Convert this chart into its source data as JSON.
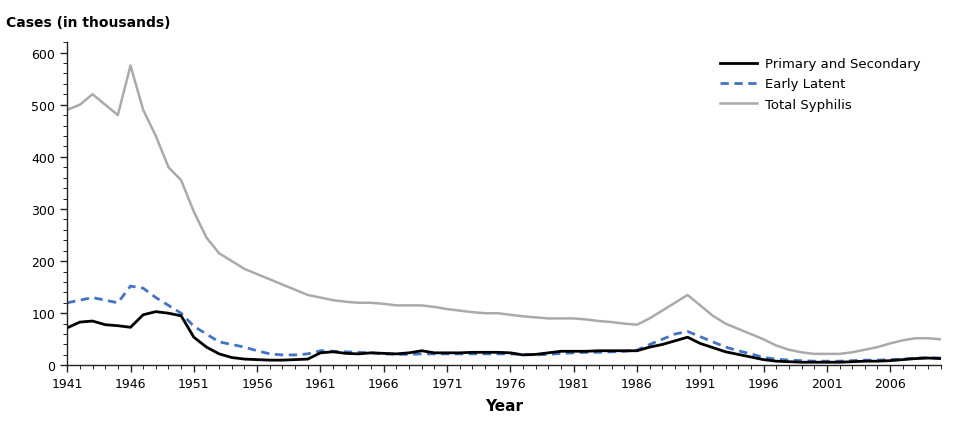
{
  "years": [
    1941,
    1942,
    1943,
    1944,
    1945,
    1946,
    1947,
    1948,
    1949,
    1950,
    1951,
    1952,
    1953,
    1954,
    1955,
    1956,
    1957,
    1958,
    1959,
    1960,
    1961,
    1962,
    1963,
    1964,
    1965,
    1966,
    1967,
    1968,
    1969,
    1970,
    1971,
    1972,
    1973,
    1974,
    1975,
    1976,
    1977,
    1978,
    1979,
    1980,
    1981,
    1982,
    1983,
    1984,
    1985,
    1986,
    1987,
    1988,
    1989,
    1990,
    1991,
    1992,
    1993,
    1994,
    1995,
    1996,
    1997,
    1998,
    1999,
    2000,
    2001,
    2002,
    2003,
    2004,
    2005,
    2006,
    2007,
    2008,
    2009,
    2010
  ],
  "primary_secondary": [
    72,
    83,
    85,
    78,
    76,
    73,
    97,
    103,
    100,
    95,
    54,
    35,
    22,
    15,
    12,
    11,
    10,
    10,
    11,
    12,
    24,
    26,
    23,
    22,
    24,
    23,
    22,
    24,
    28,
    24,
    24,
    24,
    25,
    25,
    25,
    24,
    20,
    21,
    24,
    27,
    27,
    27,
    28,
    28,
    28,
    28,
    35,
    40,
    47,
    54,
    42,
    34,
    26,
    21,
    16,
    11,
    8,
    7,
    6,
    6,
    6,
    6,
    7,
    8,
    8,
    9,
    11,
    13,
    14,
    13
  ],
  "early_latent": [
    120,
    125,
    130,
    125,
    120,
    152,
    148,
    130,
    115,
    100,
    75,
    60,
    45,
    40,
    35,
    28,
    22,
    20,
    20,
    22,
    28,
    27,
    26,
    25,
    24,
    22,
    21,
    21,
    22,
    22,
    22,
    22,
    22,
    22,
    22,
    22,
    21,
    20,
    21,
    23,
    24,
    25,
    25,
    26,
    27,
    29,
    40,
    50,
    60,
    65,
    55,
    45,
    35,
    28,
    22,
    15,
    12,
    10,
    9,
    8,
    8,
    8,
    9,
    10,
    10,
    11,
    12,
    14,
    15,
    14
  ],
  "total_syphilis": [
    490,
    500,
    520,
    500,
    480,
    575,
    490,
    440,
    380,
    355,
    295,
    245,
    215,
    200,
    185,
    175,
    165,
    155,
    145,
    135,
    130,
    125,
    122,
    120,
    120,
    118,
    115,
    115,
    115,
    112,
    108,
    105,
    102,
    100,
    100,
    97,
    94,
    92,
    90,
    90,
    90,
    88,
    85,
    83,
    80,
    78,
    90,
    105,
    120,
    135,
    115,
    95,
    80,
    70,
    60,
    50,
    38,
    30,
    25,
    22,
    22,
    22,
    25,
    30,
    35,
    42,
    48,
    52,
    52,
    50
  ],
  "primary_secondary_color": "#000000",
  "early_latent_color": "#4472c4",
  "total_syphilis_color": "#aaaaaa",
  "top_label": "Cases (in thousands)",
  "xlabel": "Year",
  "ylim": [
    0,
    620
  ],
  "yticks": [
    0,
    100,
    200,
    300,
    400,
    500,
    600
  ],
  "xtick_labels": [
    "1941",
    "1946",
    "1951",
    "1956",
    "1961",
    "1966",
    "1971",
    "1976",
    "1981",
    "1986",
    "1991",
    "1996",
    "2001",
    "2006"
  ],
  "xtick_values": [
    1941,
    1946,
    1951,
    1956,
    1961,
    1966,
    1971,
    1976,
    1981,
    1986,
    1991,
    1996,
    2001,
    2006
  ],
  "legend_labels": [
    "Primary and Secondary",
    "Early Latent",
    "Total Syphilis"
  ],
  "ps_linewidth": 2.0,
  "el_linewidth": 2.0,
  "ts_linewidth": 1.8,
  "background_color": "#ffffff"
}
